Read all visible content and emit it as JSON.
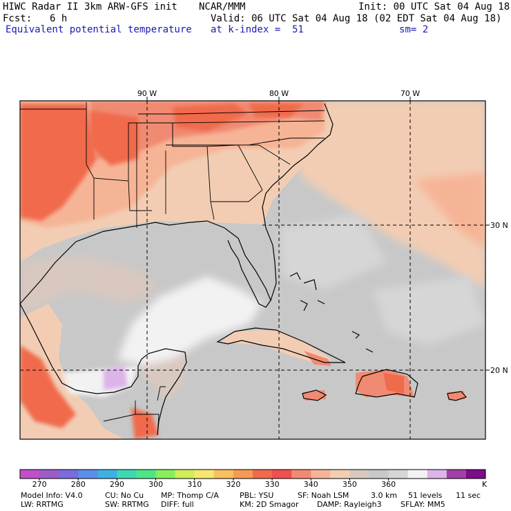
{
  "header": {
    "model_title": "HIWC Radar II 3km ARW-GFS init",
    "org": "NCAR/MMM",
    "init": "Init: 00 UTC Sat 04 Aug 18",
    "fcst_label": "Fcst:",
    "fcst_value": "6 h",
    "valid": "Valid: 06 UTC Sat 04 Aug 18 (02 EDT Sat 04 Aug 18)",
    "field": "Equivalent potential temperature",
    "level": "at k-index =  51",
    "smooth": "sm= 2"
  },
  "map": {
    "lon_labels": [
      "90 W",
      "80 W",
      "70 W"
    ],
    "lat_labels": [
      "30 N",
      "20 N"
    ]
  },
  "colorbar": {
    "unit": "K",
    "tick_labels": [
      "270",
      "280",
      "290",
      "300",
      "310",
      "320",
      "330",
      "340",
      "350",
      "360"
    ],
    "colors": [
      "#c050c8",
      "#9c5cc8",
      "#7a6cdc",
      "#5c8ee8",
      "#3fb0e4",
      "#3ed8b4",
      "#4ee488",
      "#88ee5c",
      "#cfee58",
      "#f4e870",
      "#f8c060",
      "#f49a54",
      "#f06a4c",
      "#f05050",
      "#f08a72",
      "#f6b496",
      "#f2cdb4",
      "#d8c8c0",
      "#c8c8c8",
      "#d6d6d6",
      "#f2f2f2",
      "#dcb4e8",
      "#a040a8",
      "#7c0c88"
    ]
  },
  "footer": {
    "line1": [
      {
        "key": "model",
        "text": "Model Info: V4.0"
      },
      {
        "key": "cu",
        "text": "CU: No Cu"
      },
      {
        "key": "mp",
        "text": "MP: Thomp C/A"
      },
      {
        "key": "pbl",
        "text": "PBL: YSU"
      },
      {
        "key": "sf",
        "text": "SF: Noah LSM"
      },
      {
        "key": "dx",
        "text": "3.0 km"
      },
      {
        "key": "levels",
        "text": "51 levels"
      },
      {
        "key": "dt",
        "text": "11 sec"
      }
    ],
    "line2": [
      {
        "key": "lw",
        "text": "LW: RRTMG"
      },
      {
        "key": "sw",
        "text": "SW: RRTMG"
      },
      {
        "key": "diff",
        "text": "DIFF: full"
      },
      {
        "key": "km",
        "text": "KM: 2D Smagor"
      },
      {
        "key": "damp",
        "text": "DAMP: Rayleigh3"
      },
      {
        "key": "sflay",
        "text": "SFLAY: MM5"
      }
    ]
  },
  "colors": {
    "ocean_gray": "#c8c8c8",
    "land_tan": "#f2cdb4",
    "warm_red": "#f06a4c",
    "salmon": "#f08a72",
    "light_white": "#f2f2f2",
    "grid_line": "#000000"
  }
}
